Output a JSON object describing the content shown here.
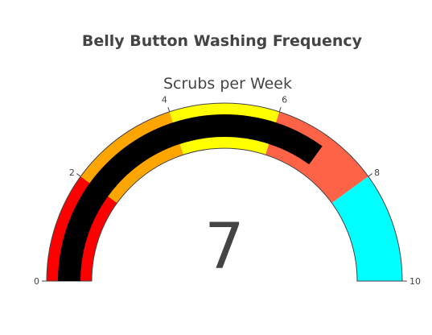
{
  "chart_data": {
    "type": "gauge",
    "title": "Belly Button Washing Frequency",
    "subtitle": "Scrubs per Week",
    "value": 7,
    "value_label": "7",
    "range": [
      0,
      10
    ],
    "ticks": [
      {
        "value": 0,
        "label": "0"
      },
      {
        "value": 2,
        "label": "2"
      },
      {
        "value": 4,
        "label": "4"
      },
      {
        "value": 6,
        "label": "6"
      },
      {
        "value": 8,
        "label": "8"
      },
      {
        "value": 10,
        "label": "10"
      }
    ],
    "steps": [
      {
        "range": [
          0,
          2
        ],
        "color": "#ff0000"
      },
      {
        "range": [
          2,
          4
        ],
        "color": "#ffa500"
      },
      {
        "range": [
          4,
          6
        ],
        "color": "#ffff00"
      },
      {
        "range": [
          6,
          8
        ],
        "color": "#ff6347"
      },
      {
        "range": [
          8,
          10
        ],
        "color": "#00ffff"
      }
    ],
    "bar_color": "#000000",
    "border_color": "#444444"
  }
}
